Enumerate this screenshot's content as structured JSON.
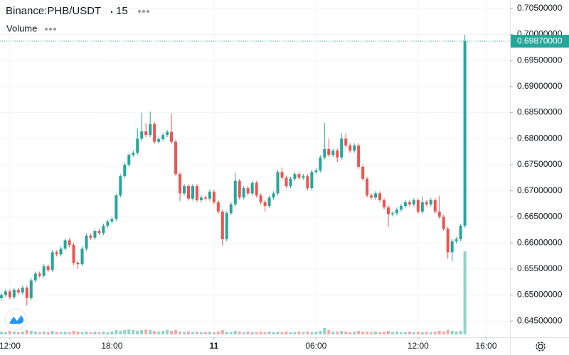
{
  "chart_data": {
    "type": "candlestick",
    "symbol": "Binance:PHB/USDT",
    "interval": "15",
    "volume_label": "Volume",
    "x": [
      11.5,
      11.75,
      12,
      12.25,
      12.5,
      12.75,
      13,
      13.25,
      13.5,
      13.75,
      14,
      14.25,
      14.5,
      14.75,
      15,
      15.25,
      15.5,
      15.75,
      16,
      16.25,
      16.5,
      16.75,
      17,
      17.25,
      17.5,
      17.75,
      18,
      18.25,
      18.5,
      18.75,
      19,
      19.25,
      19.5,
      19.75,
      20,
      20.25,
      20.5,
      20.75,
      21,
      21.25,
      21.5,
      21.75,
      22,
      22.25,
      22.5,
      22.75,
      23,
      23.25,
      23.5,
      23.75,
      24,
      24.25,
      24.5,
      24.75,
      25,
      25.25,
      25.5,
      25.75,
      26,
      26.25,
      26.5,
      26.75,
      27,
      27.25,
      27.5,
      27.75,
      28,
      28.25,
      28.5,
      28.75,
      29,
      29.25,
      29.5,
      29.75,
      30,
      30.25,
      30.5,
      30.75,
      31,
      31.25,
      31.5,
      31.75,
      32,
      32.25,
      32.5,
      32.75,
      33,
      33.25,
      33.5,
      33.75,
      34,
      34.25,
      34.5,
      34.75,
      35,
      35.25,
      35.5,
      35.75,
      36,
      36.25,
      36.5,
      36.75,
      37,
      37.25,
      37.5,
      37.75,
      38,
      38.25,
      38.5,
      38.75
    ],
    "open": [
      0.6494,
      0.65,
      0.6507,
      0.6496,
      0.651,
      0.6505,
      0.6514,
      0.6494,
      0.6528,
      0.6541,
      0.6537,
      0.6555,
      0.6548,
      0.6582,
      0.6578,
      0.6589,
      0.6605,
      0.6596,
      0.6562,
      0.6559,
      0.6589,
      0.6614,
      0.661,
      0.6623,
      0.6619,
      0.6633,
      0.6641,
      0.6646,
      0.6691,
      0.6728,
      0.675,
      0.6769,
      0.6773,
      0.68,
      0.6814,
      0.6807,
      0.6828,
      0.6794,
      0.6799,
      0.6807,
      0.6813,
      0.6794,
      0.6732,
      0.6695,
      0.6709,
      0.6685,
      0.6709,
      0.6682,
      0.6687,
      0.6685,
      0.6698,
      0.6678,
      0.666,
      0.6607,
      0.6657,
      0.6674,
      0.6719,
      0.6687,
      0.6705,
      0.6695,
      0.6715,
      0.6691,
      0.6678,
      0.6671,
      0.6687,
      0.6695,
      0.6736,
      0.6725,
      0.6709,
      0.6723,
      0.6732,
      0.6725,
      0.6728,
      0.6705,
      0.6736,
      0.6739,
      0.6764,
      0.678,
      0.6769,
      0.6777,
      0.6764,
      0.68,
      0.6787,
      0.6777,
      0.6787,
      0.6746,
      0.6723,
      0.6691,
      0.6687,
      0.6695,
      0.6682,
      0.6668,
      0.6655,
      0.6657,
      0.6664,
      0.6671,
      0.6678,
      0.6674,
      0.6682,
      0.666,
      0.6678,
      0.6674,
      0.6682,
      0.666,
      0.665,
      0.6627,
      0.6582,
      0.6603,
      0.6607,
      0.6633
    ],
    "high": [
      0.6504,
      0.6511,
      0.6511,
      0.6514,
      0.6514,
      0.6518,
      0.6518,
      0.6532,
      0.6545,
      0.6545,
      0.6559,
      0.6559,
      0.6586,
      0.6586,
      0.6593,
      0.6609,
      0.6609,
      0.66,
      0.6566,
      0.6593,
      0.6618,
      0.6618,
      0.6627,
      0.6627,
      0.6637,
      0.6645,
      0.665,
      0.6695,
      0.6732,
      0.6754,
      0.6773,
      0.6777,
      0.682,
      0.685,
      0.683,
      0.6852,
      0.6832,
      0.6803,
      0.6811,
      0.6817,
      0.6848,
      0.6798,
      0.6736,
      0.6713,
      0.6713,
      0.6713,
      0.6713,
      0.6691,
      0.6691,
      0.6702,
      0.6702,
      0.6682,
      0.6664,
      0.6661,
      0.6678,
      0.6735,
      0.6723,
      0.6709,
      0.6709,
      0.6719,
      0.6719,
      0.6695,
      0.6682,
      0.6691,
      0.6699,
      0.674,
      0.6745,
      0.6729,
      0.6727,
      0.6736,
      0.6736,
      0.6732,
      0.6732,
      0.674,
      0.6743,
      0.6768,
      0.683,
      0.68,
      0.6781,
      0.6781,
      0.681,
      0.681,
      0.6791,
      0.6791,
      0.6791,
      0.675,
      0.6727,
      0.6695,
      0.6699,
      0.6699,
      0.6686,
      0.6672,
      0.6661,
      0.6668,
      0.6675,
      0.6682,
      0.6682,
      0.6686,
      0.6686,
      0.6689,
      0.6682,
      0.6686,
      0.6686,
      0.669,
      0.6654,
      0.6631,
      0.6607,
      0.6611,
      0.6637,
      0.6999
    ],
    "low": [
      0.649,
      0.6496,
      0.6492,
      0.6492,
      0.6501,
      0.6501,
      0.648,
      0.649,
      0.6524,
      0.6533,
      0.6533,
      0.6544,
      0.6544,
      0.6574,
      0.6574,
      0.6585,
      0.6592,
      0.6558,
      0.655,
      0.6555,
      0.6585,
      0.6606,
      0.6606,
      0.6615,
      0.6615,
      0.6629,
      0.6637,
      0.6642,
      0.6687,
      0.6724,
      0.6746,
      0.6765,
      0.6769,
      0.6796,
      0.6803,
      0.6803,
      0.679,
      0.679,
      0.6795,
      0.6803,
      0.679,
      0.6728,
      0.668,
      0.6691,
      0.6681,
      0.6681,
      0.6678,
      0.6678,
      0.6681,
      0.6681,
      0.6674,
      0.6656,
      0.6595,
      0.6603,
      0.6653,
      0.667,
      0.6683,
      0.6683,
      0.6691,
      0.6691,
      0.6687,
      0.6674,
      0.666,
      0.6667,
      0.6683,
      0.6691,
      0.6721,
      0.6705,
      0.6705,
      0.6719,
      0.6721,
      0.6721,
      0.6701,
      0.6701,
      0.6732,
      0.6735,
      0.676,
      0.6765,
      0.6765,
      0.6755,
      0.676,
      0.6783,
      0.6773,
      0.6773,
      0.6742,
      0.6719,
      0.6687,
      0.6683,
      0.6683,
      0.6678,
      0.6664,
      0.663,
      0.6651,
      0.6653,
      0.666,
      0.6667,
      0.667,
      0.667,
      0.6656,
      0.6656,
      0.667,
      0.667,
      0.6656,
      0.6646,
      0.6623,
      0.657,
      0.6565,
      0.6599,
      0.6603,
      0.6629
    ],
    "close": [
      0.65,
      0.6507,
      0.6496,
      0.651,
      0.6505,
      0.6514,
      0.6494,
      0.6528,
      0.6541,
      0.6537,
      0.6555,
      0.6548,
      0.6582,
      0.6578,
      0.6589,
      0.6605,
      0.6596,
      0.6562,
      0.6559,
      0.6589,
      0.6614,
      0.661,
      0.6623,
      0.6619,
      0.6633,
      0.6641,
      0.6646,
      0.6691,
      0.6728,
      0.675,
      0.6769,
      0.6773,
      0.68,
      0.6814,
      0.6807,
      0.6828,
      0.6794,
      0.6799,
      0.6807,
      0.6813,
      0.6794,
      0.6732,
      0.6695,
      0.6709,
      0.6685,
      0.6709,
      0.6682,
      0.6687,
      0.6685,
      0.6698,
      0.6678,
      0.666,
      0.6607,
      0.6657,
      0.6674,
      0.6719,
      0.6687,
      0.6705,
      0.6695,
      0.6715,
      0.6691,
      0.6678,
      0.6671,
      0.6687,
      0.6695,
      0.6736,
      0.6725,
      0.6709,
      0.6723,
      0.6732,
      0.6725,
      0.6728,
      0.6705,
      0.6736,
      0.6739,
      0.6764,
      0.678,
      0.6769,
      0.6777,
      0.6764,
      0.68,
      0.6787,
      0.6777,
      0.6787,
      0.6746,
      0.6723,
      0.6691,
      0.6687,
      0.6695,
      0.6682,
      0.6668,
      0.6655,
      0.6657,
      0.6664,
      0.6671,
      0.6678,
      0.6674,
      0.6682,
      0.666,
      0.6678,
      0.6674,
      0.6682,
      0.666,
      0.665,
      0.6627,
      0.6582,
      0.6603,
      0.6607,
      0.6633,
      0.6987
    ],
    "volume": [
      4,
      3,
      5,
      4,
      3,
      4,
      6,
      5,
      4,
      3,
      4,
      3,
      5,
      4,
      3,
      4,
      3,
      5,
      4,
      3,
      4,
      3,
      4,
      3,
      4,
      3,
      4,
      6,
      5,
      6,
      7,
      6,
      5,
      6,
      7,
      6,
      5,
      4,
      5,
      6,
      5,
      6,
      4,
      3,
      4,
      3,
      4,
      3,
      3,
      4,
      3,
      4,
      6,
      4,
      3,
      5,
      4,
      3,
      4,
      3,
      3,
      4,
      3,
      4,
      3,
      4,
      3,
      4,
      3,
      3,
      4,
      3,
      4,
      3,
      4,
      5,
      9,
      6,
      4,
      4,
      5,
      4,
      3,
      4,
      5,
      4,
      4,
      3,
      4,
      3,
      4,
      5,
      3,
      4,
      3,
      3,
      4,
      3,
      4,
      3,
      4,
      3,
      4,
      5,
      4,
      6,
      5,
      4,
      5,
      117
    ],
    "up_color": "#26a69a",
    "down_color": "#ef5350",
    "last_price": {
      "value": 0.6987,
      "label": "0.69870000"
    },
    "xlim": [
      11.42,
      41.4
    ],
    "xticks": [
      {
        "value": 12,
        "label": "12:00"
      },
      {
        "value": 18,
        "label": "18:00"
      },
      {
        "value": 24,
        "label": "11"
      },
      {
        "value": 30,
        "label": "06:00"
      },
      {
        "value": 36,
        "label": "12:00"
      },
      {
        "value": 40,
        "label": "16:00"
      }
    ],
    "ylim": [
      0.6419,
      0.7066
    ],
    "yticks": [
      {
        "value": 0.645,
        "label": "0.64500000"
      },
      {
        "value": 0.65,
        "label": "0.65000000"
      },
      {
        "value": 0.655,
        "label": "0.65500000"
      },
      {
        "value": 0.66,
        "label": "0.66000000"
      },
      {
        "value": 0.665,
        "label": "0.66500000"
      },
      {
        "value": 0.67,
        "label": "0.67000000"
      },
      {
        "value": 0.675,
        "label": "0.67500000"
      },
      {
        "value": 0.68,
        "label": "0.68000000"
      },
      {
        "value": 0.685,
        "label": "0.68500000"
      },
      {
        "value": 0.69,
        "label": "0.69000000"
      },
      {
        "value": 0.695,
        "label": "0.69500000"
      },
      {
        "value": 0.7,
        "label": "0.70000000"
      },
      {
        "value": 0.705,
        "label": "0.70500000"
      }
    ],
    "grid": true
  }
}
